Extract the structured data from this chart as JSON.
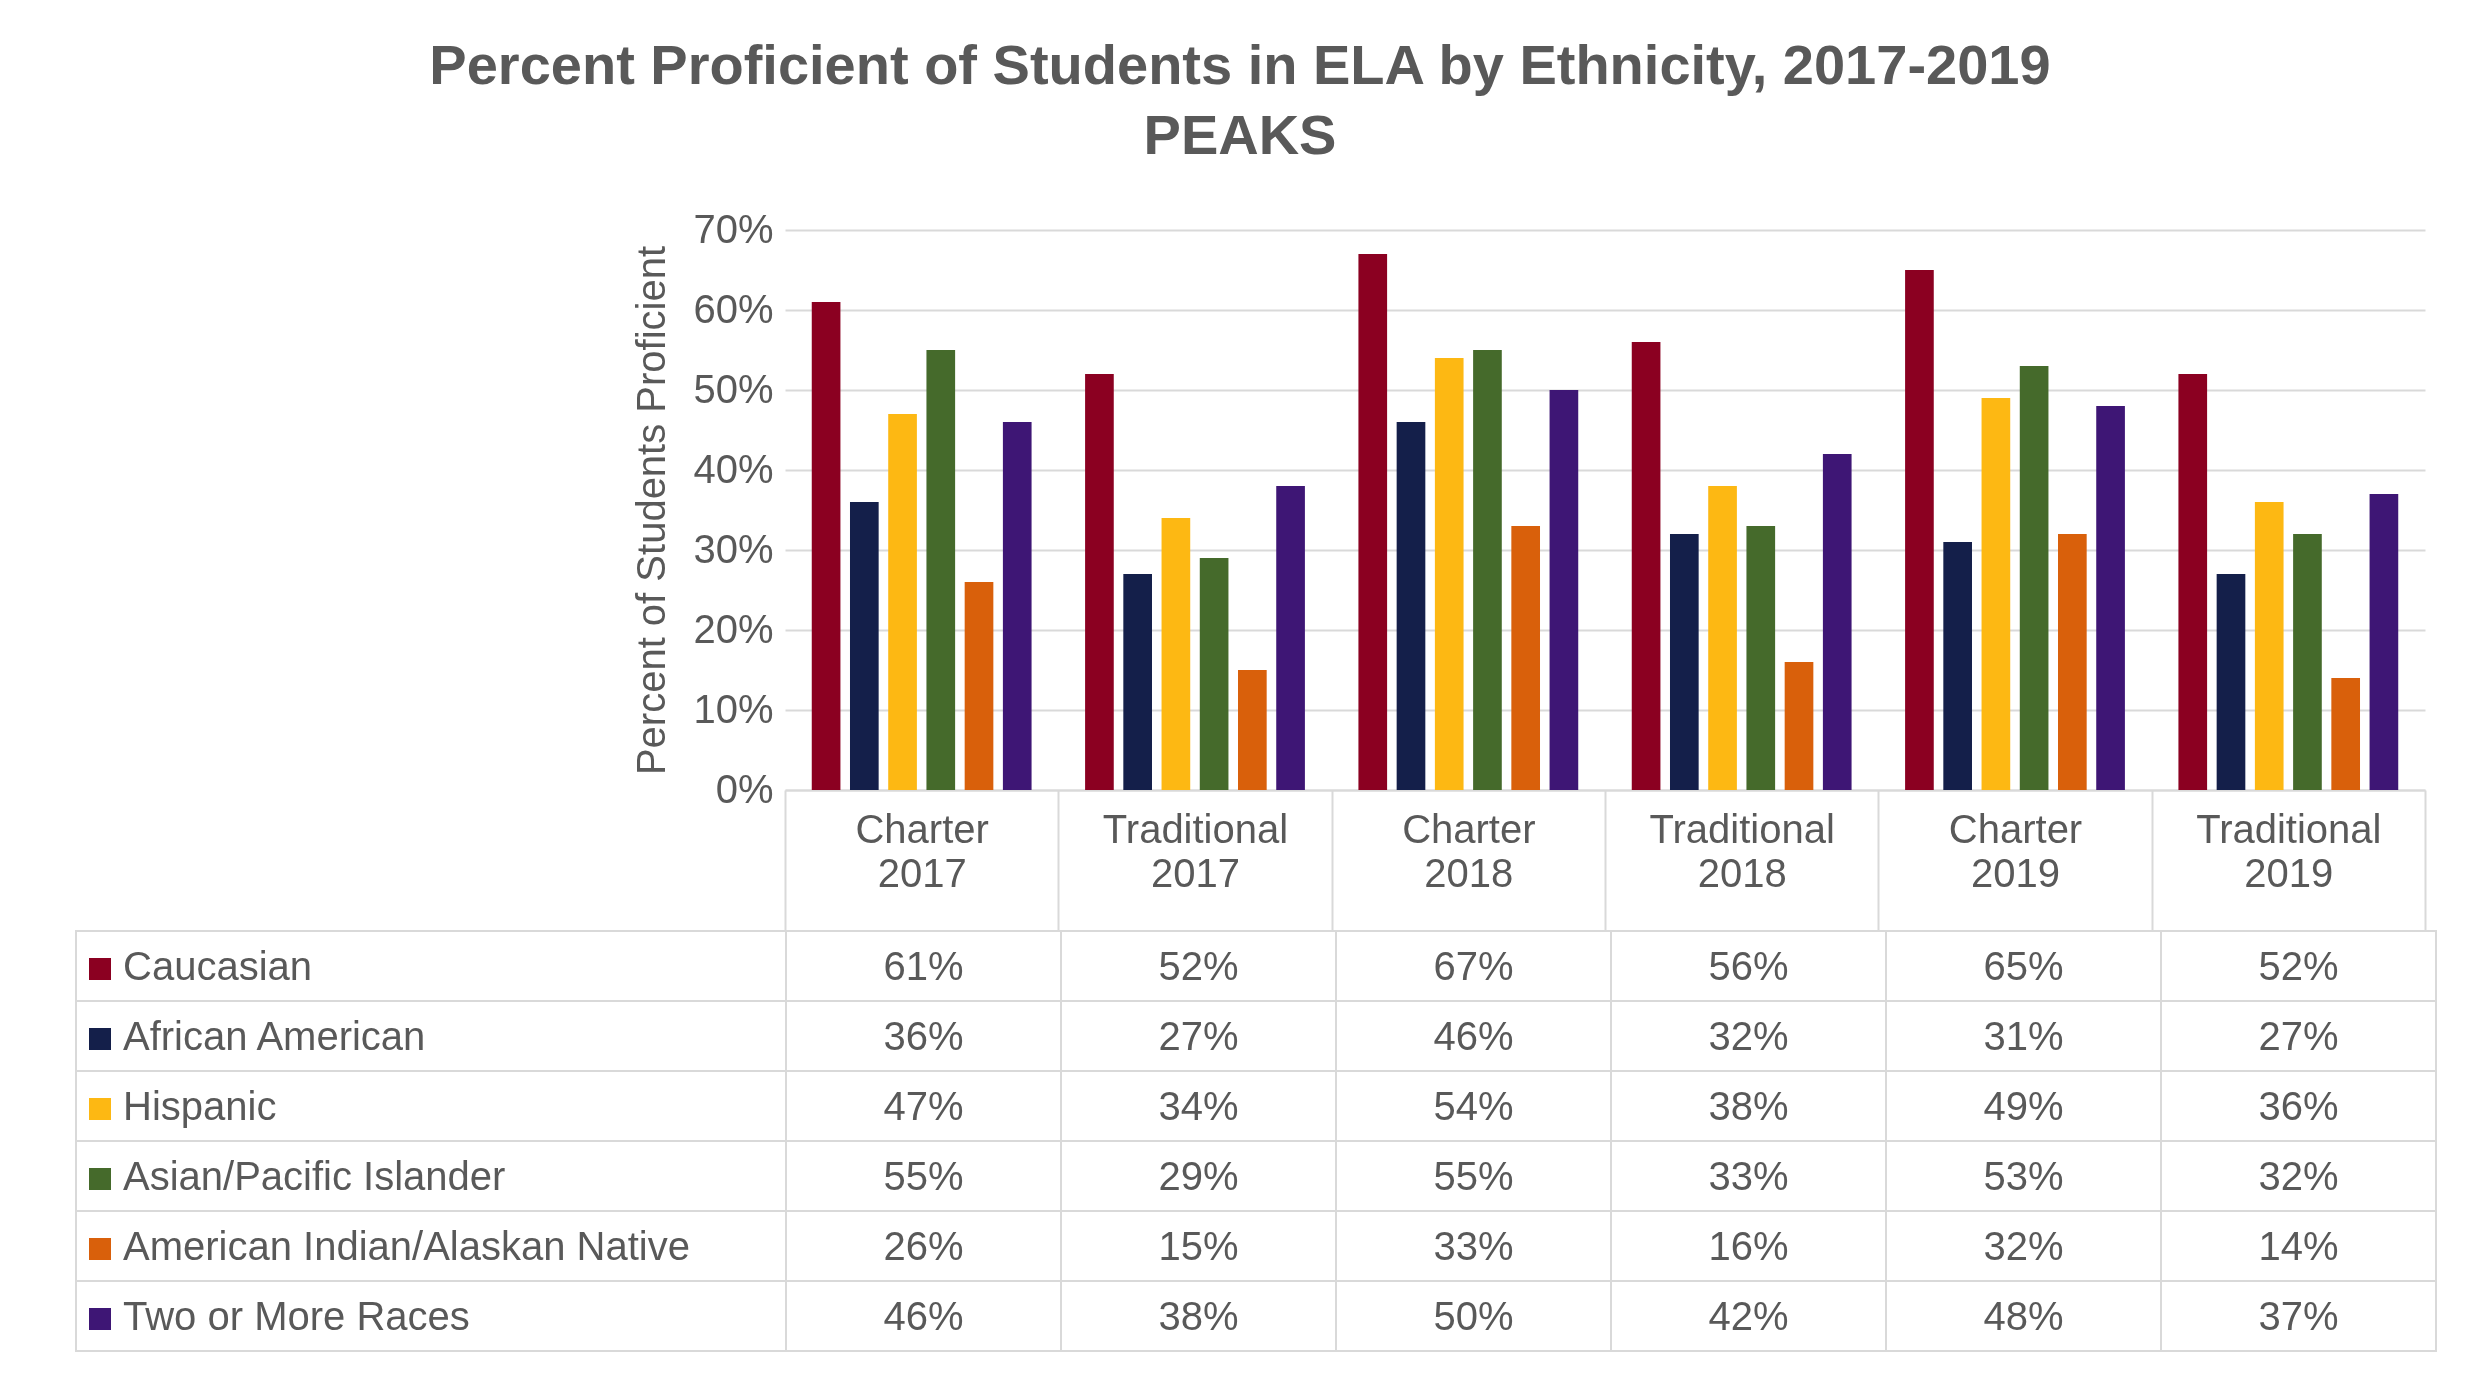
{
  "chart_data": {
    "type": "bar",
    "title": "Percent Proficient of Students in ELA by Ethnicity, 2017-2019 PEAKS",
    "ylabel": "Percent of Students Proficient",
    "categories": [
      "Charter 2017",
      "Traditional 2017",
      "Charter 2018",
      "Traditional 2018",
      "Charter 2019",
      "Traditional 2019"
    ],
    "series": [
      {
        "name": "Caucasian",
        "color": "#8b0021",
        "values": [
          61,
          52,
          67,
          56,
          65,
          52
        ],
        "value_labels": [
          "61%",
          "52%",
          "67%",
          "56%",
          "65%",
          "52%"
        ]
      },
      {
        "name": "African American",
        "color": "#141f4a",
        "values": [
          36,
          27,
          46,
          32,
          31,
          27
        ],
        "value_labels": [
          "36%",
          "27%",
          "46%",
          "32%",
          "31%",
          "27%"
        ]
      },
      {
        "name": "Hispanic",
        "color": "#fdb813",
        "values": [
          47,
          34,
          54,
          38,
          49,
          36
        ],
        "value_labels": [
          "47%",
          "34%",
          "54%",
          "38%",
          "49%",
          "36%"
        ]
      },
      {
        "name": "Asian/Pacific Islander",
        "color": "#456a2b",
        "values": [
          55,
          29,
          55,
          33,
          53,
          32
        ],
        "value_labels": [
          "55%",
          "29%",
          "55%",
          "33%",
          "53%",
          "32%"
        ]
      },
      {
        "name": "American Indian/Alaskan Native",
        "color": "#d9600b",
        "values": [
          26,
          15,
          33,
          16,
          32,
          14
        ],
        "value_labels": [
          "26%",
          "15%",
          "33%",
          "16%",
          "32%",
          "14%"
        ]
      },
      {
        "name": "Two or More Races",
        "color": "#3e1675",
        "values": [
          46,
          38,
          50,
          42,
          48,
          37
        ],
        "value_labels": [
          "46%",
          "38%",
          "50%",
          "42%",
          "48%",
          "37%"
        ]
      }
    ],
    "ylim": [
      0,
      70
    ],
    "yticks": [
      {
        "value": 0,
        "label": "0%"
      },
      {
        "value": 10,
        "label": "10%"
      },
      {
        "value": 20,
        "label": "20%"
      },
      {
        "value": 30,
        "label": "30%"
      },
      {
        "value": 40,
        "label": "40%"
      },
      {
        "value": 50,
        "label": "50%"
      },
      {
        "value": 60,
        "label": "60%"
      },
      {
        "value": 70,
        "label": "70%"
      }
    ],
    "grid": "y",
    "legend": "bottom"
  }
}
